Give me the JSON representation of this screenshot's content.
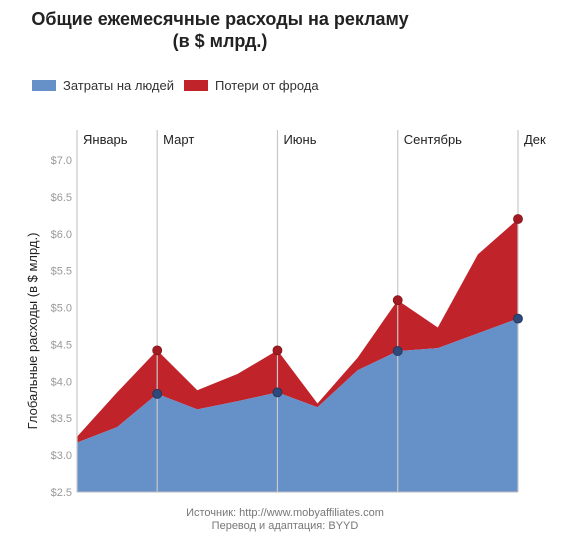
{
  "title": {
    "line1": "Общие ежемесячные расходы на рекламу",
    "line2": "(в $ млрд.)"
  },
  "legend": {
    "people": "Затраты на людей",
    "fraud": "Потери от фрода"
  },
  "colors": {
    "people": "#6590c8",
    "fraud": "#c0232a",
    "gridline": "#c8c8c8",
    "axis": "#999999"
  },
  "source": {
    "line1": "Источник: http://www.mobyaffiliates.com",
    "line2": "Перевод и адаптация: BYYD"
  },
  "chart_data": {
    "type": "area",
    "title": "Общие ежемесячные расходы на рекламу (в $ млрд.)",
    "ylabel": "Глобальные расходы (в $ млрд.)",
    "xlabel": "",
    "ylim": [
      2.5,
      7.0
    ],
    "y_ticks": [
      "$2.5",
      "$3.0",
      "$3.5",
      "$4.0",
      "$4.5",
      "$5.0",
      "$5.5",
      "$6.0",
      "$6.5",
      "$7.0"
    ],
    "y_tick_values": [
      2.5,
      3.0,
      3.5,
      4.0,
      4.5,
      5.0,
      5.5,
      6.0,
      6.5,
      7.0
    ],
    "x_month_index": [
      1,
      2,
      3,
      4,
      5,
      6,
      7,
      8,
      9,
      10,
      11,
      12
    ],
    "month_labels": [
      {
        "month": 1,
        "label": "Январь"
      },
      {
        "month": 3,
        "label": "Март"
      },
      {
        "month": 6,
        "label": "Июнь"
      },
      {
        "month": 9,
        "label": "Сентябрь"
      },
      {
        "month": 12,
        "label": "Дек"
      }
    ],
    "series": [
      {
        "name": "Затраты на людей",
        "values": [
          3.17,
          3.38,
          3.83,
          3.62,
          3.73,
          3.85,
          3.65,
          4.15,
          4.41,
          4.45,
          4.65,
          4.85
        ]
      },
      {
        "name": "Потери от фрода",
        "values": [
          3.25,
          3.85,
          4.42,
          3.88,
          4.1,
          4.42,
          3.7,
          4.32,
          5.1,
          4.73,
          5.72,
          6.2
        ]
      }
    ],
    "markers": [
      {
        "month": 3,
        "people": 3.83,
        "fraud": 4.42
      },
      {
        "month": 6,
        "people": 3.85,
        "fraud": 4.42
      },
      {
        "month": 9,
        "people": 4.41,
        "fraud": 5.1
      },
      {
        "month": 12,
        "people": 4.85,
        "fraud": 6.2
      }
    ],
    "grid": false,
    "legend_position": "top-left"
  }
}
